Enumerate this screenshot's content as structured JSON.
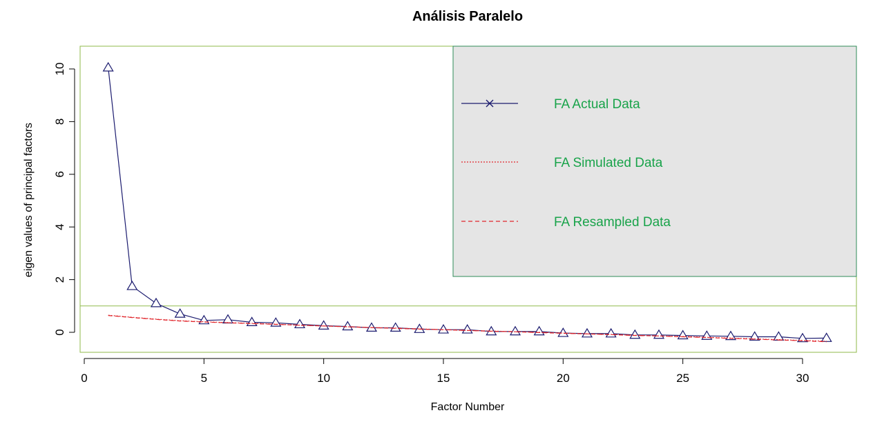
{
  "chart_data": {
    "type": "line",
    "title": "Análisis Paralelo",
    "xlabel": "Factor Number",
    "ylabel": "eigen values of principal factors",
    "xlim": [
      0,
      32
    ],
    "ylim": [
      -0.8,
      11
    ],
    "xticks": [
      0,
      5,
      10,
      15,
      20,
      25,
      30
    ],
    "yticks": [
      0,
      2,
      4,
      6,
      8,
      10
    ],
    "reference_line_y": 1,
    "x": [
      1,
      2,
      3,
      4,
      5,
      6,
      7,
      8,
      9,
      10,
      11,
      12,
      13,
      14,
      15,
      16,
      17,
      18,
      19,
      20,
      21,
      22,
      23,
      24,
      25,
      26,
      27,
      28,
      29,
      30,
      31
    ],
    "series": [
      {
        "name": "FA Actual Data",
        "color": "#1a1a6e",
        "style": "solid",
        "marker": "triangle",
        "values": [
          10.05,
          1.75,
          1.1,
          0.7,
          0.45,
          0.48,
          0.38,
          0.36,
          0.3,
          0.25,
          0.22,
          0.17,
          0.17,
          0.12,
          0.1,
          0.1,
          0.03,
          0.03,
          0.03,
          -0.03,
          -0.05,
          -0.05,
          -0.1,
          -0.1,
          -0.12,
          -0.14,
          -0.15,
          -0.17,
          -0.17,
          -0.23,
          -0.22
        ]
      },
      {
        "name": "FA Simulated Data",
        "color": "#e0242a",
        "style": "dotted",
        "marker": "none",
        "values": [
          0.65,
          0.57,
          0.5,
          0.44,
          0.4,
          0.37,
          0.34,
          0.31,
          0.27,
          0.24,
          0.21,
          0.18,
          0.16,
          0.13,
          0.1,
          0.07,
          0.05,
          0.02,
          0.0,
          -0.03,
          -0.06,
          -0.08,
          -0.11,
          -0.14,
          -0.16,
          -0.19,
          -0.22,
          -0.25,
          -0.28,
          -0.31,
          -0.34
        ]
      },
      {
        "name": "FA Resampled Data",
        "color": "#e0242a",
        "style": "dashed",
        "marker": "none",
        "values": [
          0.64,
          0.56,
          0.49,
          0.43,
          0.39,
          0.36,
          0.33,
          0.3,
          0.27,
          0.24,
          0.21,
          0.18,
          0.15,
          0.12,
          0.1,
          0.07,
          0.04,
          0.02,
          -0.01,
          -0.04,
          -0.06,
          -0.09,
          -0.12,
          -0.14,
          -0.17,
          -0.2,
          -0.23,
          -0.26,
          -0.29,
          -0.32,
          -0.36
        ]
      }
    ],
    "legend": {
      "placement": "top-right",
      "background": "#e5e5e5",
      "border_color": "#2e8b57",
      "text_color": "#19a34a",
      "entries": [
        "FA Actual Data",
        "FA Simulated Data",
        "FA Resampled Data"
      ]
    },
    "frame_color": "#8fba4a",
    "grid": false
  }
}
